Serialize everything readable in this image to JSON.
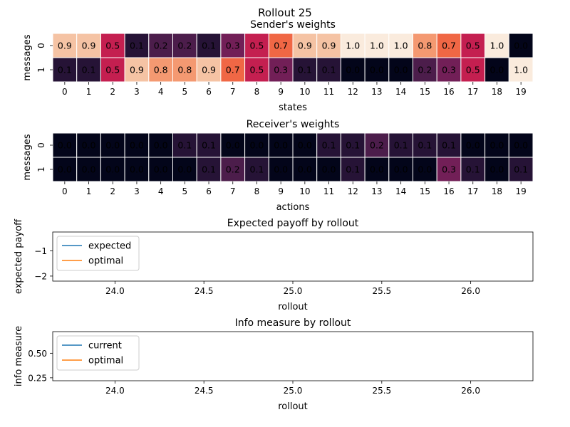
{
  "figure_title": "Rollout 25",
  "chart_data": [
    {
      "type": "heatmap",
      "title": "Sender's weights",
      "xlabel": "states",
      "ylabel": "messages",
      "x_ticks": [
        "0",
        "1",
        "2",
        "3",
        "4",
        "5",
        "6",
        "7",
        "8",
        "9",
        "10",
        "11",
        "12",
        "13",
        "14",
        "15",
        "16",
        "17",
        "18",
        "19"
      ],
      "y_ticks": [
        "0",
        "1"
      ],
      "values": [
        [
          0.9,
          0.9,
          0.5,
          0.1,
          0.2,
          0.2,
          0.1,
          0.3,
          0.5,
          0.7,
          0.9,
          0.9,
          1.0,
          1.0,
          1.0,
          0.8,
          0.7,
          0.5,
          1.0,
          0.0
        ],
        [
          0.1,
          0.1,
          0.5,
          0.9,
          0.8,
          0.8,
          0.9,
          0.7,
          0.5,
          0.3,
          0.1,
          0.1,
          0.0,
          0.0,
          0.0,
          0.2,
          0.3,
          0.5,
          0.0,
          1.0
        ]
      ],
      "colormap": "rocket",
      "annotations": true
    },
    {
      "type": "heatmap",
      "title": "Receiver's weights",
      "xlabel": "actions",
      "ylabel": "messages",
      "x_ticks": [
        "0",
        "1",
        "2",
        "3",
        "4",
        "5",
        "6",
        "7",
        "8",
        "9",
        "10",
        "11",
        "12",
        "13",
        "14",
        "15",
        "16",
        "17",
        "18",
        "19"
      ],
      "y_ticks": [
        "0",
        "1"
      ],
      "values": [
        [
          0.0,
          0.0,
          0.0,
          0.0,
          0.0,
          0.1,
          0.1,
          0.0,
          0.0,
          0.0,
          0.0,
          0.1,
          0.1,
          0.2,
          0.1,
          0.1,
          0.1,
          0.0,
          0.0,
          0.0
        ],
        [
          0.0,
          0.0,
          0.0,
          0.0,
          0.0,
          0.0,
          0.1,
          0.2,
          0.1,
          0.0,
          0.0,
          0.0,
          0.1,
          0.0,
          0.0,
          0.0,
          0.3,
          0.1,
          0.0,
          0.1
        ]
      ],
      "colormap": "rocket",
      "annotations": true
    },
    {
      "type": "line",
      "title": "Expected payoff by rollout",
      "xlabel": "rollout",
      "ylabel": "expected payoff",
      "xlim": [
        23.65,
        26.35
      ],
      "ylim": [
        -2.2,
        -0.25
      ],
      "x_ticks": [
        "24.0",
        "24.5",
        "25.0",
        "25.5",
        "26.0"
      ],
      "y_ticks": [
        "-1",
        "-2"
      ],
      "series": [
        {
          "name": "expected",
          "color": "#1f77b4",
          "x": [],
          "y": []
        },
        {
          "name": "optimal",
          "color": "#ff7f0e",
          "x": [],
          "y": []
        }
      ],
      "legend": "top-left",
      "grid": false
    },
    {
      "type": "line",
      "title": "Info measure by rollout",
      "xlabel": "rollout",
      "ylabel": "info measure",
      "xlim": [
        23.65,
        26.35
      ],
      "ylim": [
        0.22,
        0.72
      ],
      "x_ticks": [
        "24.0",
        "24.5",
        "25.0",
        "25.5",
        "26.0"
      ],
      "y_ticks": [
        "0.50",
        "0.25"
      ],
      "series": [
        {
          "name": "current",
          "color": "#1f77b4",
          "x": [],
          "y": []
        },
        {
          "name": "optimal",
          "color": "#ff7f0e",
          "x": [],
          "y": []
        }
      ],
      "legend": "top-left",
      "grid": false
    }
  ]
}
